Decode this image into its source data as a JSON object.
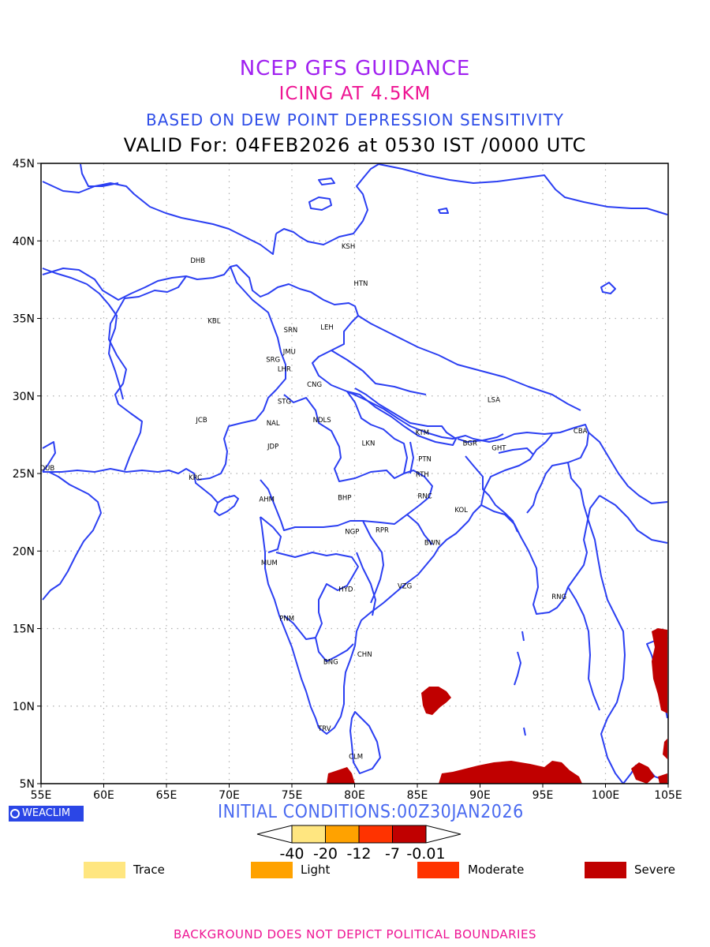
{
  "titles": {
    "line1": "NCEP GFS GUIDANCE",
    "line2": "ICING AT 4.5KM",
    "line3": "BASED ON DEW POINT DEPRESSION SENSITIVITY",
    "line4": "VALID For: 04FEB2026 at 0530 IST /0000 UTC"
  },
  "map": {
    "lon_range": [
      55,
      105
    ],
    "lat_range": [
      5,
      45
    ],
    "x_ticks": [
      "55E",
      "60E",
      "65E",
      "70E",
      "75E",
      "80E",
      "85E",
      "90E",
      "95E",
      "100E",
      "105E"
    ],
    "y_ticks": [
      "5N",
      "10N",
      "15N",
      "20N",
      "25N",
      "30N",
      "35N",
      "40N",
      "45N"
    ],
    "grid": true,
    "coastline_color": "#2b3ff2",
    "stations": [
      {
        "code": "KSH",
        "lon": 79.5,
        "lat": 39.5
      },
      {
        "code": "DHB",
        "lon": 67.5,
        "lat": 38.6
      },
      {
        "code": "HTN",
        "lon": 80.5,
        "lat": 37.1
      },
      {
        "code": "KBL",
        "lon": 68.8,
        "lat": 34.7
      },
      {
        "code": "SRN",
        "lon": 74.9,
        "lat": 34.1
      },
      {
        "code": "LEH",
        "lon": 77.8,
        "lat": 34.3
      },
      {
        "code": "JMU",
        "lon": 74.8,
        "lat": 32.7
      },
      {
        "code": "SRG",
        "lon": 73.5,
        "lat": 32.2
      },
      {
        "code": "LHR",
        "lon": 74.4,
        "lat": 31.6
      },
      {
        "code": "CNG",
        "lon": 76.8,
        "lat": 30.6
      },
      {
        "code": "LSA",
        "lon": 91.1,
        "lat": 29.6
      },
      {
        "code": "STG",
        "lon": 74.4,
        "lat": 29.5
      },
      {
        "code": "JCB",
        "lon": 67.8,
        "lat": 28.3
      },
      {
        "code": "NAL",
        "lon": 73.5,
        "lat": 28.1
      },
      {
        "code": "NDLS",
        "lon": 77.4,
        "lat": 28.3
      },
      {
        "code": "KTM",
        "lon": 85.4,
        "lat": 27.5
      },
      {
        "code": "CBA",
        "lon": 98.0,
        "lat": 27.6
      },
      {
        "code": "BGR",
        "lon": 89.2,
        "lat": 26.8
      },
      {
        "code": "GHT",
        "lon": 91.5,
        "lat": 26.5
      },
      {
        "code": "JDP",
        "lon": 73.5,
        "lat": 26.6
      },
      {
        "code": "LKN",
        "lon": 81.1,
        "lat": 26.8
      },
      {
        "code": "PTN",
        "lon": 85.6,
        "lat": 25.8
      },
      {
        "code": "DUB",
        "lon": 55.5,
        "lat": 25.2
      },
      {
        "code": "RTH",
        "lon": 85.4,
        "lat": 24.8
      },
      {
        "code": "KRC",
        "lon": 67.3,
        "lat": 24.6
      },
      {
        "code": "AHM",
        "lon": 73.0,
        "lat": 23.2
      },
      {
        "code": "BHP",
        "lon": 79.2,
        "lat": 23.3
      },
      {
        "code": "RNC",
        "lon": 85.6,
        "lat": 23.4
      },
      {
        "code": "KOL",
        "lon": 88.5,
        "lat": 22.5
      },
      {
        "code": "NGP",
        "lon": 79.8,
        "lat": 21.1
      },
      {
        "code": "RPR",
        "lon": 82.2,
        "lat": 21.2
      },
      {
        "code": "BWN",
        "lon": 86.2,
        "lat": 20.4
      },
      {
        "code": "MUM",
        "lon": 73.2,
        "lat": 19.1
      },
      {
        "code": "HYD",
        "lon": 79.3,
        "lat": 17.4
      },
      {
        "code": "VZG",
        "lon": 84.0,
        "lat": 17.6
      },
      {
        "code": "RNG",
        "lon": 96.3,
        "lat": 16.9
      },
      {
        "code": "PNM",
        "lon": 74.6,
        "lat": 15.5
      },
      {
        "code": "CHN",
        "lon": 80.8,
        "lat": 13.2
      },
      {
        "code": "BNG",
        "lon": 78.1,
        "lat": 12.7
      },
      {
        "code": "TRV",
        "lon": 77.6,
        "lat": 8.4
      },
      {
        "code": "CLM",
        "lon": 80.1,
        "lat": 6.6
      }
    ]
  },
  "colorbar": {
    "ticks": [
      "-40",
      "-20",
      "-12",
      "-7",
      "-0.01"
    ],
    "colors": [
      "#ffe680",
      "#ffa200",
      "#ff3300",
      "#c00000"
    ]
  },
  "legend": [
    {
      "label": "Trace",
      "color": "#ffe680"
    },
    {
      "label": "Light",
      "color": "#ffa200"
    },
    {
      "label": "Moderate",
      "color": "#ff3300"
    },
    {
      "label": "Severe",
      "color": "#c00000"
    }
  ],
  "logo": {
    "text": "WEACLIM"
  },
  "initial_conditions": "INITIAL CONDITIONS:00Z30JAN2026",
  "footer": "BACKGROUND DOES NOT DEPICT POLITICAL BOUNDARIES"
}
